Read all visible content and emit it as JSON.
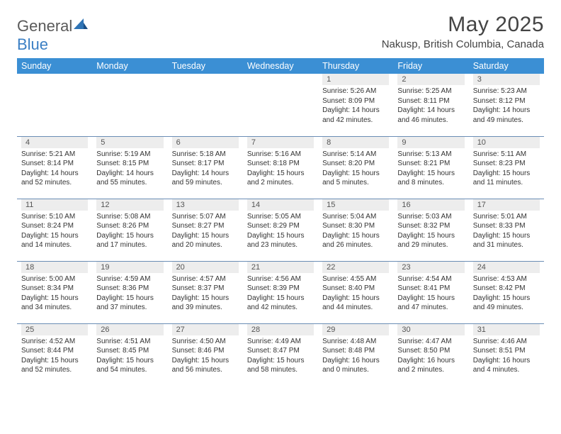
{
  "brand": {
    "part1": "General",
    "part2": "Blue"
  },
  "title": "May 2025",
  "location": "Nakusp, British Columbia, Canada",
  "colors": {
    "header_bg": "#3b8fd4",
    "header_fg": "#ffffff",
    "daynum_bg": "#ededed",
    "rule": "#6a8db5",
    "logo_blue": "#3b7fc4",
    "logo_gray": "#5a5a5a",
    "text": "#333333"
  },
  "weekdays": [
    "Sunday",
    "Monday",
    "Tuesday",
    "Wednesday",
    "Thursday",
    "Friday",
    "Saturday"
  ],
  "weeks": [
    [
      {
        "n": "",
        "sr": "",
        "ss": "",
        "dl": ""
      },
      {
        "n": "",
        "sr": "",
        "ss": "",
        "dl": ""
      },
      {
        "n": "",
        "sr": "",
        "ss": "",
        "dl": ""
      },
      {
        "n": "",
        "sr": "",
        "ss": "",
        "dl": ""
      },
      {
        "n": "1",
        "sr": "5:26 AM",
        "ss": "8:09 PM",
        "dl": "14 hours and 42 minutes."
      },
      {
        "n": "2",
        "sr": "5:25 AM",
        "ss": "8:11 PM",
        "dl": "14 hours and 46 minutes."
      },
      {
        "n": "3",
        "sr": "5:23 AM",
        "ss": "8:12 PM",
        "dl": "14 hours and 49 minutes."
      }
    ],
    [
      {
        "n": "4",
        "sr": "5:21 AM",
        "ss": "8:14 PM",
        "dl": "14 hours and 52 minutes."
      },
      {
        "n": "5",
        "sr": "5:19 AM",
        "ss": "8:15 PM",
        "dl": "14 hours and 55 minutes."
      },
      {
        "n": "6",
        "sr": "5:18 AM",
        "ss": "8:17 PM",
        "dl": "14 hours and 59 minutes."
      },
      {
        "n": "7",
        "sr": "5:16 AM",
        "ss": "8:18 PM",
        "dl": "15 hours and 2 minutes."
      },
      {
        "n": "8",
        "sr": "5:14 AM",
        "ss": "8:20 PM",
        "dl": "15 hours and 5 minutes."
      },
      {
        "n": "9",
        "sr": "5:13 AM",
        "ss": "8:21 PM",
        "dl": "15 hours and 8 minutes."
      },
      {
        "n": "10",
        "sr": "5:11 AM",
        "ss": "8:23 PM",
        "dl": "15 hours and 11 minutes."
      }
    ],
    [
      {
        "n": "11",
        "sr": "5:10 AM",
        "ss": "8:24 PM",
        "dl": "15 hours and 14 minutes."
      },
      {
        "n": "12",
        "sr": "5:08 AM",
        "ss": "8:26 PM",
        "dl": "15 hours and 17 minutes."
      },
      {
        "n": "13",
        "sr": "5:07 AM",
        "ss": "8:27 PM",
        "dl": "15 hours and 20 minutes."
      },
      {
        "n": "14",
        "sr": "5:05 AM",
        "ss": "8:29 PM",
        "dl": "15 hours and 23 minutes."
      },
      {
        "n": "15",
        "sr": "5:04 AM",
        "ss": "8:30 PM",
        "dl": "15 hours and 26 minutes."
      },
      {
        "n": "16",
        "sr": "5:03 AM",
        "ss": "8:32 PM",
        "dl": "15 hours and 29 minutes."
      },
      {
        "n": "17",
        "sr": "5:01 AM",
        "ss": "8:33 PM",
        "dl": "15 hours and 31 minutes."
      }
    ],
    [
      {
        "n": "18",
        "sr": "5:00 AM",
        "ss": "8:34 PM",
        "dl": "15 hours and 34 minutes."
      },
      {
        "n": "19",
        "sr": "4:59 AM",
        "ss": "8:36 PM",
        "dl": "15 hours and 37 minutes."
      },
      {
        "n": "20",
        "sr": "4:57 AM",
        "ss": "8:37 PM",
        "dl": "15 hours and 39 minutes."
      },
      {
        "n": "21",
        "sr": "4:56 AM",
        "ss": "8:39 PM",
        "dl": "15 hours and 42 minutes."
      },
      {
        "n": "22",
        "sr": "4:55 AM",
        "ss": "8:40 PM",
        "dl": "15 hours and 44 minutes."
      },
      {
        "n": "23",
        "sr": "4:54 AM",
        "ss": "8:41 PM",
        "dl": "15 hours and 47 minutes."
      },
      {
        "n": "24",
        "sr": "4:53 AM",
        "ss": "8:42 PM",
        "dl": "15 hours and 49 minutes."
      }
    ],
    [
      {
        "n": "25",
        "sr": "4:52 AM",
        "ss": "8:44 PM",
        "dl": "15 hours and 52 minutes."
      },
      {
        "n": "26",
        "sr": "4:51 AM",
        "ss": "8:45 PM",
        "dl": "15 hours and 54 minutes."
      },
      {
        "n": "27",
        "sr": "4:50 AM",
        "ss": "8:46 PM",
        "dl": "15 hours and 56 minutes."
      },
      {
        "n": "28",
        "sr": "4:49 AM",
        "ss": "8:47 PM",
        "dl": "15 hours and 58 minutes."
      },
      {
        "n": "29",
        "sr": "4:48 AM",
        "ss": "8:48 PM",
        "dl": "16 hours and 0 minutes."
      },
      {
        "n": "30",
        "sr": "4:47 AM",
        "ss": "8:50 PM",
        "dl": "16 hours and 2 minutes."
      },
      {
        "n": "31",
        "sr": "4:46 AM",
        "ss": "8:51 PM",
        "dl": "16 hours and 4 minutes."
      }
    ]
  ],
  "labels": {
    "sunrise": "Sunrise:",
    "sunset": "Sunset:",
    "daylight": "Daylight:"
  }
}
